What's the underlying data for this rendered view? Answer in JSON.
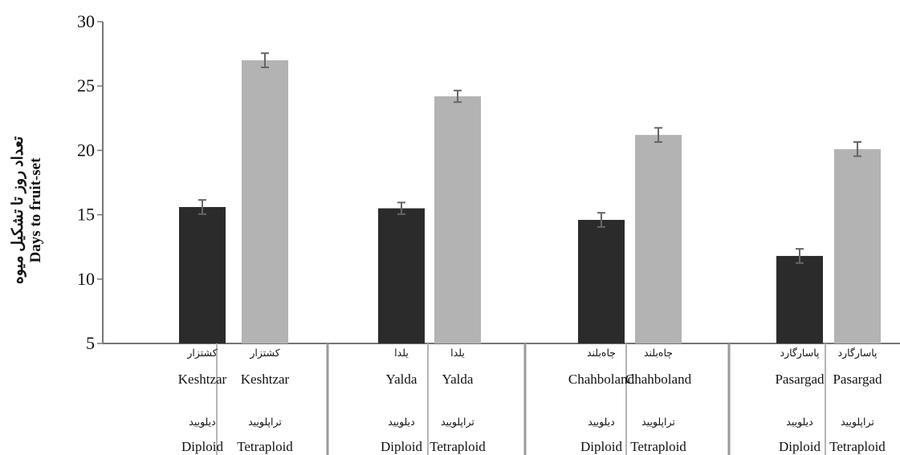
{
  "chart_data": {
    "type": "bar",
    "ylabel_fa": "تعداد روز تا تشکیل میوه",
    "ylabel_en": "Days to fruit-set",
    "ylim": [
      5,
      30
    ],
    "yticks": [
      5,
      10,
      15,
      20,
      25,
      30
    ],
    "categories": [
      {
        "variety_fa": "کشتزار",
        "variety_en": "Keshtzar",
        "ploidy_fa": "دیلویید",
        "ploidy_en": "Diploid",
        "value": 15.6,
        "error": 0.55,
        "color": "#2b2b2b"
      },
      {
        "variety_fa": "کشتزار",
        "variety_en": "Keshtzar",
        "ploidy_fa": "تراپلویید",
        "ploidy_en": "Tetraploid",
        "value": 27.0,
        "error": 0.55,
        "color": "#b3b3b3"
      },
      {
        "variety_fa": "یلدا",
        "variety_en": "Yalda",
        "ploidy_fa": "دیلویید",
        "ploidy_en": "Diploid",
        "value": 15.5,
        "error": 0.45,
        "color": "#2b2b2b"
      },
      {
        "variety_fa": "یلدا",
        "variety_en": "Yalda",
        "ploidy_fa": "تراپلویید",
        "ploidy_en": "Tetraploid",
        "value": 24.2,
        "error": 0.45,
        "color": "#b3b3b3"
      },
      {
        "variety_fa": "چاه‌بلند",
        "variety_en": "Chahboland",
        "ploidy_fa": "دیلویید",
        "ploidy_en": "Diploid",
        "value": 14.6,
        "error": 0.55,
        "color": "#2b2b2b"
      },
      {
        "variety_fa": "چاه‌بلند",
        "variety_en": "Chahboland",
        "ploidy_fa": "تراپلویید",
        "ploidy_en": "Tetraploid",
        "value": 21.2,
        "error": 0.55,
        "color": "#b3b3b3"
      },
      {
        "variety_fa": "پاسارگارد",
        "variety_en": "Pasargad",
        "ploidy_fa": "دیلویید",
        "ploidy_en": "Diploid",
        "value": 11.8,
        "error": 0.55,
        "color": "#2b2b2b"
      },
      {
        "variety_fa": "پاسارگارد",
        "variety_en": "Pasargad",
        "ploidy_fa": "تراپلویید",
        "ploidy_en": "Tetraploid",
        "value": 20.1,
        "error": 0.55,
        "color": "#b3b3b3"
      }
    ]
  }
}
